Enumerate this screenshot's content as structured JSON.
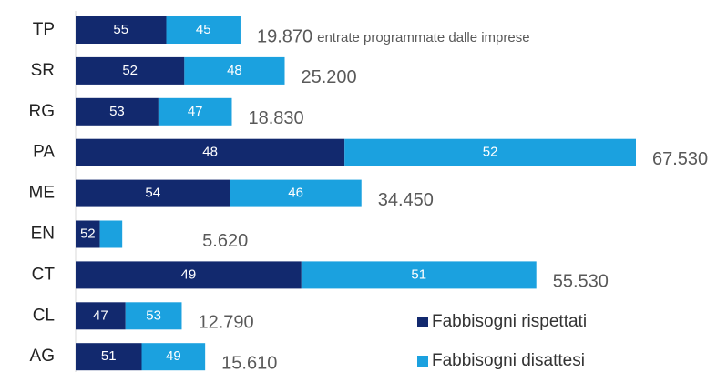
{
  "chart_data": {
    "type": "stacked_bar_horizontal",
    "categories": [
      "TP",
      "SR",
      "RG",
      "PA",
      "ME",
      "EN",
      "CT",
      "CL",
      "AG"
    ],
    "series": [
      {
        "name": "Fabbisogni rispettati",
        "color": "#12296e",
        "values": [
          55,
          52,
          53,
          48,
          54,
          52,
          49,
          47,
          51
        ]
      },
      {
        "name": "Fabbisogni disattesi",
        "color": "#1ba1df",
        "values": [
          45,
          48,
          47,
          52,
          46,
          48,
          51,
          53,
          49
        ]
      }
    ],
    "totals": {
      "values": [
        19870,
        25200,
        18830,
        67530,
        34450,
        5620,
        55530,
        12790,
        15610
      ],
      "value_labels": [
        "19.870",
        "25.200",
        "18.830",
        "67.530",
        "34.450",
        "5.620",
        "55.530",
        "12.790",
        "15.610"
      ]
    },
    "annotation": "entrate programmate dalle imprese"
  }
}
